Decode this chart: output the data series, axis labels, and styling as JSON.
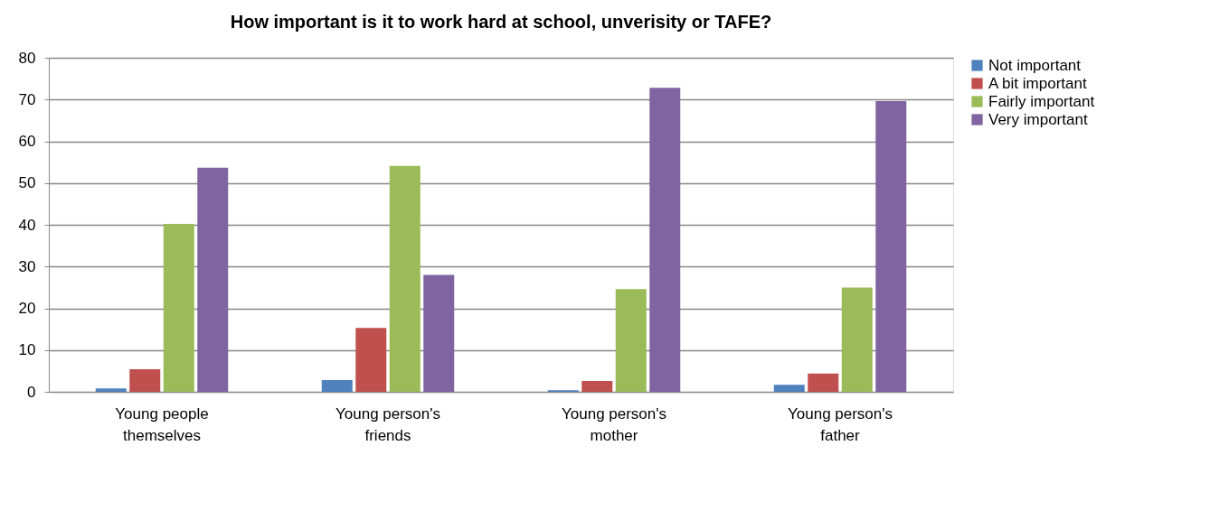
{
  "chart_data": {
    "type": "bar",
    "title": "How important is it to work hard at school, unverisity or TAFE?",
    "categories": [
      "Young people themselves",
      "Young person's friends",
      "Young person's mother",
      "Young person's father"
    ],
    "series": [
      {
        "name": "Not important",
        "color": "#4f81bd",
        "values": [
          0.8,
          2.8,
          0.4,
          1.7
        ]
      },
      {
        "name": "A bit important",
        "color": "#c0504d",
        "values": [
          5.4,
          15.3,
          2.6,
          4.4
        ]
      },
      {
        "name": "Fairly important",
        "color": "#9bbb59",
        "values": [
          40.2,
          54.1,
          24.6,
          25.0
        ]
      },
      {
        "name": "Very important",
        "color": "#8064a2",
        "values": [
          53.7,
          28.0,
          72.8,
          69.6
        ]
      }
    ],
    "ylim": [
      0,
      80
    ],
    "yticks": [
      0,
      10,
      20,
      30,
      40,
      50,
      60,
      70,
      80
    ],
    "grid": "y",
    "legend": "right"
  }
}
